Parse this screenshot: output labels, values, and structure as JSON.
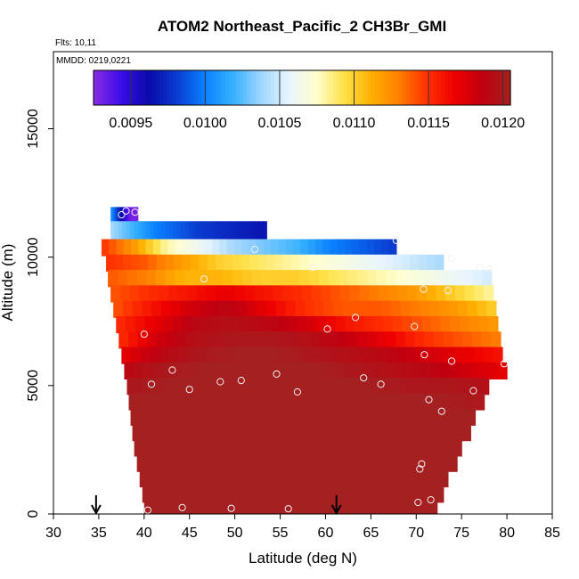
{
  "chart_data": {
    "type": "heatmap",
    "title": "ATOM2 Northeast_Pacific_2 CH3Br_GMI",
    "flights_note": "Flts: 10,11",
    "dates_note": "MMDD: 0219,0221",
    "xlabel": "Latitude (deg N)",
    "ylabel": "Altitude (m)",
    "xlim": [
      30,
      85
    ],
    "ylim": [
      0,
      18000
    ],
    "x_ticks": [
      "30",
      "35",
      "40",
      "45",
      "50",
      "55",
      "60",
      "65",
      "70",
      "75",
      "80",
      "85"
    ],
    "y_ticks": [
      "0",
      "5000",
      "10000",
      "15000"
    ],
    "colorbar": {
      "min": 0.00925,
      "max": 0.01205,
      "tick_values": [
        0.0095,
        0.01,
        0.0105,
        0.011,
        0.0115,
        0.012
      ],
      "tick_labels": [
        "0.0095",
        "0.0100",
        "0.0105",
        "0.0110",
        "0.0115",
        "0.0120"
      ],
      "colors": [
        "#8a2be2",
        "#3a0de8",
        "#0a0aa8",
        "#0a3cd0",
        "#0a80ff",
        "#35b0ff",
        "#9cd4ff",
        "#e8f4ff",
        "#ffffd0",
        "#ffe24a",
        "#ffb000",
        "#ff7f00",
        "#ff3000",
        "#ee0000",
        "#c00010",
        "#a52020"
      ]
    },
    "arrows_lat": [
      34.7,
      61.2
    ],
    "profile_bands": [
      {
        "ybot": 11300,
        "ytop": 11950,
        "xmin": 36.3,
        "xmax": 39.3,
        "values": [
          0.0101,
          0.0098,
          0.0095,
          0.0093,
          0.0093
        ]
      },
      {
        "ybot": 10650,
        "ytop": 11400,
        "xmin": 36.3,
        "xmax": 53.5,
        "values": [
          0.0104,
          0.0102,
          0.01,
          0.0099,
          0.0098,
          0.00975,
          0.0097,
          0.00965
        ]
      },
      {
        "ybot": 10050,
        "ytop": 10700,
        "xmin": 35.3,
        "xmax": 67.8,
        "values": [
          0.0115,
          0.0112,
          0.0108,
          0.0106,
          0.0104,
          0.0103,
          0.0102,
          0.01,
          0.0099,
          0.0098
        ]
      },
      {
        "ybot": 9450,
        "ytop": 10100,
        "xmin": 35.8,
        "xmax": 73.0,
        "values": [
          0.0115,
          0.0114,
          0.0112,
          0.011,
          0.0109,
          0.0108,
          0.0107,
          0.0106,
          0.0105,
          0.0104
        ]
      },
      {
        "ybot": 8850,
        "ytop": 9500,
        "xmin": 36.0,
        "xmax": 78.3,
        "values": [
          0.0114,
          0.0113,
          0.0111,
          0.0111,
          0.011,
          0.011,
          0.0109,
          0.0108,
          0.0107,
          0.0106,
          0.0105
        ]
      },
      {
        "ybot": 8250,
        "ytop": 8900,
        "xmin": 36.3,
        "xmax": 78.5,
        "values": [
          0.0114,
          0.0115,
          0.0116,
          0.0117,
          0.0116,
          0.0115,
          0.0114,
          0.0113,
          0.0112,
          0.011,
          0.0108
        ]
      },
      {
        "ybot": 7650,
        "ytop": 8300,
        "xmin": 36.6,
        "xmax": 78.8,
        "values": [
          0.0114,
          0.0116,
          0.0118,
          0.0119,
          0.0117,
          0.0115,
          0.0114,
          0.0114,
          0.0113,
          0.0112,
          0.011
        ]
      },
      {
        "ybot": 7050,
        "ytop": 7700,
        "xmin": 36.9,
        "xmax": 79.0,
        "values": [
          0.0115,
          0.0117,
          0.0119,
          0.01195,
          0.0119,
          0.0118,
          0.0116,
          0.0115,
          0.0114,
          0.0113,
          0.0112
        ]
      },
      {
        "ybot": 6450,
        "ytop": 7100,
        "xmin": 37.2,
        "xmax": 79.3,
        "values": [
          0.0115,
          0.0118,
          0.01195,
          0.012,
          0.012,
          0.01195,
          0.01185,
          0.0117,
          0.0115,
          0.0114,
          0.0113
        ]
      },
      {
        "ybot": 5850,
        "ytop": 6500,
        "xmin": 37.5,
        "xmax": 79.5,
        "values": [
          0.0117,
          0.0119,
          0.012,
          0.01205,
          0.01205,
          0.012,
          0.01195,
          0.0119,
          0.0118,
          0.0117,
          0.0116
        ]
      },
      {
        "ybot": 5250,
        "ytop": 5900,
        "xmin": 37.8,
        "xmax": 80.0,
        "values": [
          0.0119,
          0.012,
          0.01205,
          0.01205,
          0.01205,
          0.01205,
          0.012,
          0.01195,
          0.0119,
          0.0118,
          0.0117
        ]
      },
      {
        "ybot": 4650,
        "ytop": 5300,
        "xmin": 38.1,
        "xmax": 78.0,
        "values": [
          0.012,
          0.01205,
          0.01205,
          0.01205,
          0.01205,
          0.01205,
          0.01205,
          0.012,
          0.012,
          0.01195
        ]
      },
      {
        "ybot": 4050,
        "ytop": 4700,
        "xmin": 38.3,
        "xmax": 77.5,
        "values": [
          0.01205,
          0.01205,
          0.01205,
          0.01205,
          0.01205,
          0.01205,
          0.01205,
          0.01205,
          0.012
        ]
      },
      {
        "ybot": 3450,
        "ytop": 4100,
        "xmin": 38.5,
        "xmax": 76.5,
        "values": [
          0.01205,
          0.01205,
          0.01205,
          0.01205,
          0.01205,
          0.01205,
          0.01205,
          0.01205
        ]
      },
      {
        "ybot": 2850,
        "ytop": 3500,
        "xmin": 38.7,
        "xmax": 76.0,
        "values": [
          0.01205,
          0.01205,
          0.01205,
          0.01205,
          0.01205,
          0.01205,
          0.01205,
          0.01205
        ]
      },
      {
        "ybot": 2250,
        "ytop": 2900,
        "xmin": 38.9,
        "xmax": 75.0,
        "values": [
          0.01205,
          0.01205,
          0.01205,
          0.01205,
          0.01205,
          0.01205,
          0.01205
        ]
      },
      {
        "ybot": 1650,
        "ytop": 2300,
        "xmin": 39.2,
        "xmax": 74.5,
        "values": [
          0.01205,
          0.01205,
          0.01205,
          0.01205,
          0.01205,
          0.01205,
          0.01205
        ]
      },
      {
        "ybot": 1050,
        "ytop": 1700,
        "xmin": 39.5,
        "xmax": 73.5,
        "values": [
          0.01205,
          0.01205,
          0.01205,
          0.01205,
          0.01205,
          0.01205
        ]
      },
      {
        "ybot": 450,
        "ytop": 1100,
        "xmin": 39.8,
        "xmax": 73.0,
        "values": [
          0.01205,
          0.01205,
          0.01205,
          0.01205,
          0.01205,
          0.01205
        ]
      },
      {
        "ybot": 0,
        "ytop": 500,
        "xmin": 40.0,
        "xmax": 72.3,
        "values": [
          0.01205,
          0.01205,
          0.01205,
          0.01205,
          0.01205,
          0.01205
        ]
      }
    ],
    "observations": [
      {
        "lat": 38.0,
        "alt": 11800
      },
      {
        "lat": 39.0,
        "alt": 11750
      },
      {
        "lat": 37.5,
        "alt": 11650
      },
      {
        "lat": 52.2,
        "alt": 10300
      },
      {
        "lat": 67.8,
        "alt": 10650
      },
      {
        "lat": 73.9,
        "alt": 9950
      },
      {
        "lat": 58.6,
        "alt": 9600
      },
      {
        "lat": 77.0,
        "alt": 9600
      },
      {
        "lat": 78.0,
        "alt": 9550
      },
      {
        "lat": 46.6,
        "alt": 9150
      },
      {
        "lat": 70.8,
        "alt": 8750
      },
      {
        "lat": 73.5,
        "alt": 8700
      },
      {
        "lat": 63.3,
        "alt": 7650
      },
      {
        "lat": 69.8,
        "alt": 7300
      },
      {
        "lat": 60.2,
        "alt": 7200
      },
      {
        "lat": 40.0,
        "alt": 7000
      },
      {
        "lat": 70.9,
        "alt": 6200
      },
      {
        "lat": 73.9,
        "alt": 5950
      },
      {
        "lat": 79.7,
        "alt": 5850
      },
      {
        "lat": 43.1,
        "alt": 5600
      },
      {
        "lat": 54.6,
        "alt": 5450
      },
      {
        "lat": 64.2,
        "alt": 5300
      },
      {
        "lat": 48.4,
        "alt": 5150
      },
      {
        "lat": 50.7,
        "alt": 5200
      },
      {
        "lat": 66.1,
        "alt": 5050
      },
      {
        "lat": 40.8,
        "alt": 5050
      },
      {
        "lat": 45.0,
        "alt": 4850
      },
      {
        "lat": 56.9,
        "alt": 4750
      },
      {
        "lat": 76.3,
        "alt": 4800
      },
      {
        "lat": 71.4,
        "alt": 4450
      },
      {
        "lat": 72.8,
        "alt": 4000
      },
      {
        "lat": 70.6,
        "alt": 1950
      },
      {
        "lat": 70.4,
        "alt": 1750
      },
      {
        "lat": 70.2,
        "alt": 450
      },
      {
        "lat": 71.6,
        "alt": 550
      },
      {
        "lat": 40.4,
        "alt": 150
      },
      {
        "lat": 44.2,
        "alt": 250
      },
      {
        "lat": 49.6,
        "alt": 220
      },
      {
        "lat": 55.9,
        "alt": 200
      }
    ]
  }
}
